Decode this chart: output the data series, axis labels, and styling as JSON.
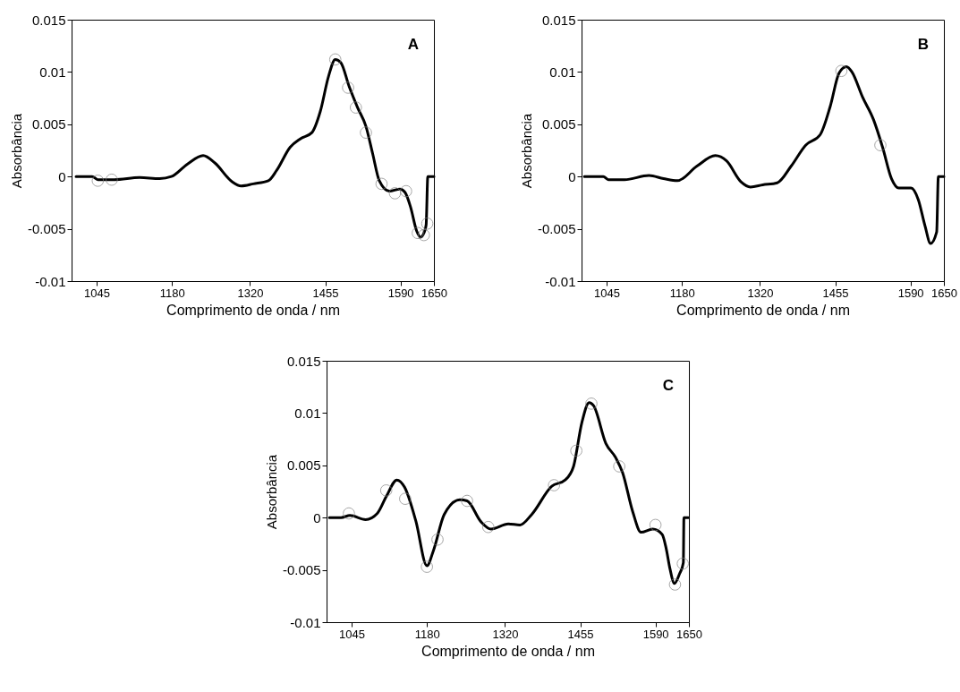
{
  "chart_data": [
    {
      "type": "line",
      "xlabel": "Comprimento de onda / nm",
      "ylabel": "Absorbância",
      "annotations": [
        "A"
      ],
      "xlim": [
        1000,
        1650
      ],
      "ylim": [
        -0.01,
        0.015
      ],
      "xticks": [
        1045,
        1180,
        1320,
        1455,
        1590,
        1650
      ],
      "yticks": [
        -0.01,
        -0.005,
        0,
        0.005,
        0.01,
        0.015
      ],
      "grid": false,
      "series": [
        {
          "type": "line",
          "color": "#000000",
          "line_style": "solid",
          "x": [
            1008,
            1037,
            1047,
            1077,
            1122,
            1158,
            1179,
            1208,
            1236,
            1257,
            1288,
            1304,
            1326,
            1353,
            1368,
            1392,
            1410,
            1431,
            1446,
            1461,
            1473,
            1483,
            1498,
            1513,
            1528,
            1540,
            1552,
            1570,
            1589,
            1598,
            1608,
            1619,
            1626,
            1632,
            1636,
            1639,
            1650
          ],
          "values": [
            0,
            0,
            -0.0003,
            -0.0003,
            -0.0001,
            -0.0002,
            0,
            0.0012,
            0.002,
            0.0013,
            -0.0005,
            -0.0009,
            -0.0007,
            -0.0004,
            0.0006,
            0.0028,
            0.0036,
            0.0042,
            0.0062,
            0.0096,
            0.0112,
            0.0109,
            0.0086,
            0.0066,
            0.0048,
            0.0022,
            -0.0004,
            -0.0014,
            -0.0012,
            -0.0015,
            -0.0029,
            -0.0052,
            -0.0058,
            -0.0054,
            -0.0046,
            0,
            0
          ]
        },
        {
          "type": "scatter",
          "color": "#808080",
          "marker": "circle",
          "x": [
            1047,
            1072,
            1473,
            1496,
            1510,
            1528,
            1556,
            1580,
            1600,
            1621,
            1632,
            1638
          ],
          "values": [
            -0.0004,
            -0.0003,
            0.0112,
            0.0085,
            0.0066,
            0.0042,
            -0.0007,
            -0.0016,
            -0.0014,
            -0.0054,
            -0.0056,
            -0.0045
          ]
        }
      ]
    },
    {
      "type": "line",
      "xlabel": "Comprimento de onda / nm",
      "ylabel": "Absorbância",
      "annotations": [
        "B"
      ],
      "xlim": [
        1000,
        1650
      ],
      "ylim": [
        -0.01,
        0.015
      ],
      "xticks": [
        1045,
        1180,
        1320,
        1455,
        1590,
        1650
      ],
      "yticks": [
        -0.01,
        -0.005,
        0,
        0.005,
        0.01,
        0.015
      ],
      "grid": false,
      "series": [
        {
          "type": "line",
          "color": "#000000",
          "line_style": "solid",
          "x": [
            1005,
            1039,
            1048,
            1077,
            1121,
            1147,
            1172,
            1207,
            1240,
            1260,
            1286,
            1303,
            1325,
            1351,
            1376,
            1402,
            1428,
            1446,
            1462,
            1475,
            1485,
            1504,
            1524,
            1540,
            1556,
            1569,
            1591,
            1604,
            1616,
            1626,
            1637,
            1640,
            1650
          ],
          "values": [
            0,
            0,
            -0.0003,
            -0.0003,
            0.0001,
            -0.0002,
            -0.0004,
            0.001,
            0.002,
            0.0015,
            -0.0005,
            -0.001,
            -0.0008,
            -0.0006,
            0.001,
            0.003,
            0.004,
            0.0067,
            0.0099,
            0.0105,
            0.01,
            0.0076,
            0.0054,
            0.0028,
            -0.0002,
            -0.0011,
            -0.0011,
            -0.0022,
            -0.0047,
            -0.0064,
            -0.0053,
            0,
            0
          ]
        },
        {
          "type": "scatter",
          "color": "#808080",
          "marker": "circle",
          "x": [
            1466,
            1536
          ],
          "values": [
            0.0101,
            0.003
          ]
        }
      ]
    },
    {
      "type": "line",
      "xlabel": "Comprimento de onda / nm",
      "ylabel": "Absorbância",
      "annotations": [
        "C"
      ],
      "xlim": [
        1000,
        1650
      ],
      "ylim": [
        -0.01,
        0.015
      ],
      "xticks": [
        1045,
        1180,
        1320,
        1455,
        1590,
        1650
      ],
      "yticks": [
        -0.01,
        -0.005,
        0,
        0.005,
        0.01,
        0.015
      ],
      "grid": false,
      "series": [
        {
          "type": "line",
          "color": "#000000",
          "line_style": "solid",
          "x": [
            1005,
            1026,
            1042,
            1070,
            1091,
            1107,
            1126,
            1140,
            1160,
            1180,
            1192,
            1211,
            1239,
            1252,
            1277,
            1295,
            1326,
            1347,
            1368,
            1404,
            1428,
            1443,
            1458,
            1471,
            1479,
            1501,
            1519,
            1531,
            1549,
            1564,
            1585,
            1602,
            1609,
            1616,
            1624,
            1633,
            1640,
            1641,
            1649
          ],
          "values": [
            0,
            0,
            0.0002,
            -0.0002,
            0.0004,
            0.002,
            0.0036,
            0.0029,
            -0.0003,
            -0.0046,
            -0.0031,
            0.0003,
            0.0017,
            0.0016,
            -0.0004,
            -0.0011,
            -0.0006,
            -0.0007,
            0.0003,
            0.003,
            0.0036,
            0.0049,
            0.0091,
            0.011,
            0.0107,
            0.0071,
            0.0057,
            0.0043,
            0.0006,
            -0.0014,
            -0.0011,
            -0.0016,
            -0.0029,
            -0.0049,
            -0.0063,
            -0.0054,
            -0.0043,
            0,
            0
          ]
        },
        {
          "type": "scatter",
          "color": "#808080",
          "marker": "circle",
          "x": [
            1040,
            1107,
            1141,
            1180,
            1199,
            1252,
            1290,
            1408,
            1448,
            1475,
            1525,
            1590,
            1625,
            1639
          ],
          "values": [
            0.0004,
            0.0026,
            0.0018,
            -0.0047,
            -0.0021,
            0.0016,
            -0.0009,
            0.0031,
            0.0064,
            0.0109,
            0.0049,
            -0.0007,
            -0.0064,
            -0.0044
          ]
        }
      ]
    }
  ]
}
